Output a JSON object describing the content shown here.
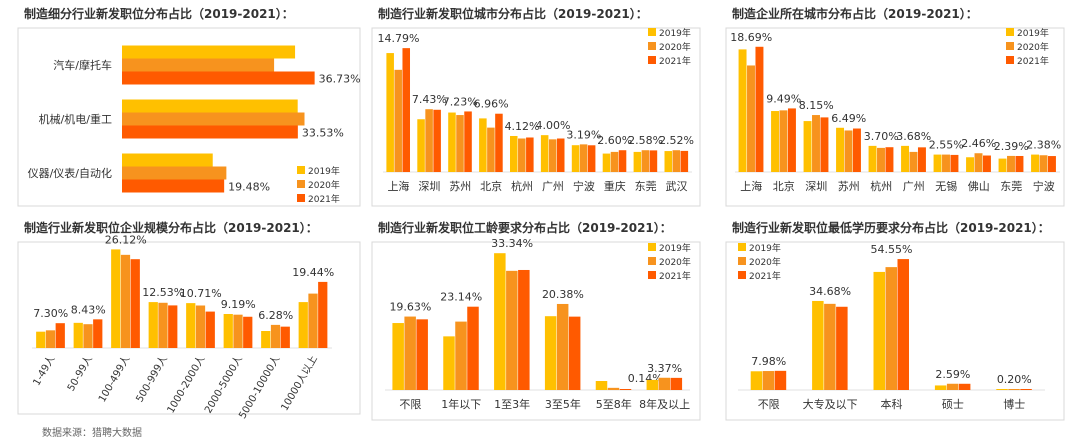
{
  "colors": {
    "y2019": "#FFC000",
    "y2020": "#F7931E",
    "y2021": "#FF5A00",
    "border": "#d8d8d8",
    "text": "#333333"
  },
  "source": "数据来源：猎聘大数据",
  "chart_data": [
    {
      "id": "industry",
      "type": "bar",
      "orientation": "horizontal",
      "title": "制造细分行业新发职位分布占比（2019-2021）：",
      "categories": [
        "汽车/摩托车",
        "机械/机电/重工",
        "仪器/仪表/自动化"
      ],
      "series": [
        {
          "name": "2019年",
          "values": [
            33.0,
            33.5,
            17.3
          ]
        },
        {
          "name": "2020年",
          "values": [
            29.0,
            34.8,
            19.9
          ]
        },
        {
          "name": "2021年",
          "values": [
            36.73,
            33.53,
            19.48
          ]
        }
      ],
      "data_labels": [
        "36.73%",
        "33.53%",
        "19.48%"
      ],
      "legend": [
        "2019年",
        "2020年",
        "2021年"
      ],
      "legend_position": "bottom-right",
      "xlim": [
        0,
        45
      ]
    },
    {
      "id": "city_jobs",
      "type": "bar",
      "title": "制造行业新发职位城市分布占比（2019-2021）：",
      "categories": [
        "上海",
        "深圳",
        "苏州",
        "北京",
        "杭州",
        "广州",
        "宁波",
        "重庆",
        "东莞",
        "武汉"
      ],
      "series": [
        {
          "name": "2019年",
          "values": [
            14.2,
            6.3,
            7.1,
            6.4,
            4.3,
            4.4,
            3.2,
            2.2,
            2.4,
            2.5
          ]
        },
        {
          "name": "2020年",
          "values": [
            12.2,
            7.5,
            6.8,
            5.3,
            4.0,
            3.9,
            3.3,
            2.4,
            2.6,
            2.6
          ]
        },
        {
          "name": "2021年",
          "values": [
            14.79,
            7.43,
            7.23,
            6.96,
            4.12,
            4.0,
            3.19,
            2.6,
            2.58,
            2.52
          ]
        }
      ],
      "data_labels": [
        "14.79%",
        "7.43%",
        "7.23%",
        "6.96%",
        "4.12%",
        "4.00%",
        "3.19%",
        "2.60%",
        "2.58%",
        "2.52%"
      ],
      "legend": [
        "2019年",
        "2020年",
        "2021年"
      ],
      "legend_position": "top-right",
      "ylim": [
        0,
        16
      ]
    },
    {
      "id": "city_companies",
      "type": "bar",
      "title": "制造企业所在城市分布占比（2019-2021）：",
      "categories": [
        "上海",
        "北京",
        "深圳",
        "苏州",
        "杭州",
        "广州",
        "无锡",
        "佛山",
        "东莞",
        "宁波"
      ],
      "series": [
        {
          "name": "2019年",
          "values": [
            18.3,
            9.1,
            7.6,
            6.6,
            3.9,
            3.9,
            2.6,
            2.2,
            2.0,
            2.6
          ]
        },
        {
          "name": "2020年",
          "values": [
            15.9,
            9.2,
            8.5,
            6.2,
            3.6,
            3.0,
            2.6,
            2.8,
            2.4,
            2.5
          ]
        },
        {
          "name": "2021年",
          "values": [
            18.69,
            9.49,
            8.15,
            6.49,
            3.7,
            3.68,
            2.55,
            2.46,
            2.39,
            2.38
          ]
        }
      ],
      "data_labels": [
        "18.69%",
        "9.49%",
        "8.15%",
        "6.49%",
        "3.70%",
        "3.68%",
        "2.55%",
        "2.46%",
        "2.39%",
        "2.38%"
      ],
      "legend": [
        "2019年",
        "2020年",
        "2021年"
      ],
      "legend_position": "top-right",
      "ylim": [
        0,
        20
      ]
    },
    {
      "id": "company_size",
      "type": "bar",
      "title": "制造行业新发职位企业规模分布占比（2019-2021）：",
      "categories": [
        "1-49人",
        "50-99人",
        "100-499人",
        "500-999人",
        "1000-2000人",
        "2000-5000人",
        "5000-10000人",
        "10000人以上"
      ],
      "series": [
        {
          "name": "2019年",
          "values": [
            4.8,
            7.4,
            29.0,
            13.5,
            13.2,
            10.0,
            5.0,
            13.5
          ]
        },
        {
          "name": "2020年",
          "values": [
            5.2,
            7.0,
            27.4,
            13.3,
            12.5,
            9.8,
            6.8,
            16.0
          ]
        },
        {
          "name": "2021年",
          "values": [
            7.3,
            8.43,
            26.12,
            12.53,
            10.71,
            9.19,
            6.28,
            19.44
          ]
        }
      ],
      "data_labels": [
        "7.30%",
        "8.43%",
        "26.12%",
        "12.53%",
        "10.71%",
        "9.19%",
        "6.28%",
        "19.44%"
      ],
      "legend": [],
      "ylim": [
        0,
        30
      ]
    },
    {
      "id": "experience",
      "type": "bar",
      "title": "制造行业新发职位工龄要求分布占比（2019-2021）：",
      "categories": [
        "不限",
        "1年以下",
        "1至3年",
        "3至5年",
        "5至8年",
        "8年及以上"
      ],
      "series": [
        {
          "name": "2019年",
          "values": [
            18.6,
            14.9,
            38.0,
            20.5,
            2.5,
            2.8
          ]
        },
        {
          "name": "2020年",
          "values": [
            20.4,
            19.0,
            33.1,
            23.9,
            0.6,
            3.4
          ]
        },
        {
          "name": "2021年",
          "values": [
            19.63,
            23.14,
            33.34,
            20.38,
            0.14,
            3.37
          ]
        }
      ],
      "data_labels": [
        "19.63%",
        "23.14%",
        "33.34%",
        "20.38%",
        "0.14%",
        "3.37%"
      ],
      "legend": [
        "2019年",
        "2020年",
        "2021年"
      ],
      "legend_position": "top-right",
      "ylim": [
        0,
        40
      ]
    },
    {
      "id": "education",
      "type": "bar",
      "title": "制造行业新发职位最低学历要求分布占比（2019-2021）：",
      "categories": [
        "不限",
        "大专及以下",
        "本科",
        "硕士",
        "博士"
      ],
      "series": [
        {
          "name": "2019年",
          "values": [
            7.8,
            37.1,
            49.2,
            1.9,
            0.15
          ]
        },
        {
          "name": "2020年",
          "values": [
            7.9,
            35.9,
            51.2,
            2.6,
            0.18
          ]
        },
        {
          "name": "2021年",
          "values": [
            7.98,
            34.68,
            54.55,
            2.59,
            0.2
          ]
        }
      ],
      "data_labels": [
        "7.98%",
        "34.68%",
        "54.55%",
        "2.59%",
        "0.20%"
      ],
      "legend": [
        "2019年",
        "2020年",
        "2021年"
      ],
      "legend_position": "top-left",
      "ylim": [
        0,
        60
      ]
    }
  ]
}
